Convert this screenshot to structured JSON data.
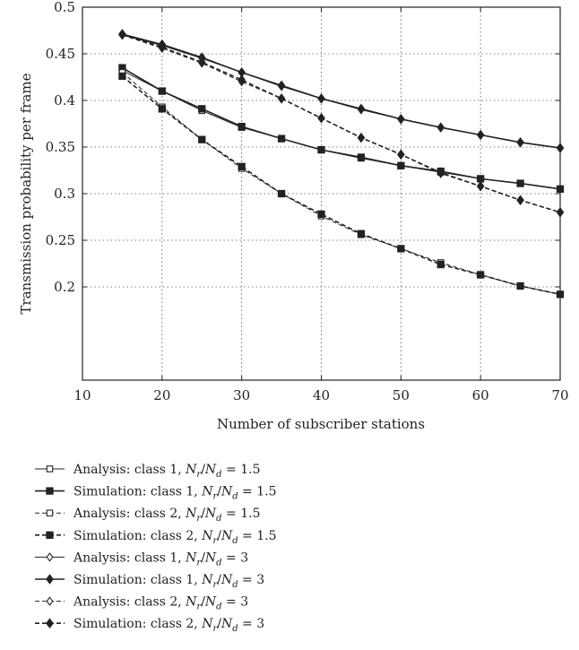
{
  "chart_data": {
    "type": "line",
    "title": "",
    "xlabel": "Number of subscriber stations",
    "ylabel": "Transmission probability per frame",
    "xlim": [
      10,
      70
    ],
    "ylim": [
      0.1,
      0.5
    ],
    "xticks": [
      10,
      20,
      30,
      40,
      50,
      60,
      70
    ],
    "yticks": [
      0.2,
      0.25,
      0.3,
      0.35,
      0.4,
      0.45,
      0.5
    ],
    "ytick_labels": [
      "0.2",
      "0.25",
      "0.3",
      "0.35",
      "0.4",
      "0.45",
      "0.5"
    ],
    "grid": true,
    "legend_position": "below",
    "series": [
      {
        "name": "Analysis: class 1, Nr/Nd = 1.5",
        "legend": {
          "prefix": "Analysis: class 1, ",
          "ratio": "1.5"
        },
        "line": "solid",
        "marker": "square",
        "filled": false,
        "thin": true,
        "x": [
          15,
          20,
          25,
          30,
          35,
          40,
          45,
          50,
          55,
          60,
          65,
          70
        ],
        "values": [
          0.432,
          0.41,
          0.389,
          0.371,
          0.359,
          0.347,
          0.338,
          0.33,
          0.323,
          0.316,
          0.311,
          0.305
        ]
      },
      {
        "name": "Simulation: class 1, Nr/Nd = 1.5",
        "legend": {
          "prefix": "Simulation: class 1, ",
          "ratio": "1.5"
        },
        "line": "solid",
        "marker": "square",
        "filled": true,
        "thin": false,
        "x": [
          15,
          20,
          25,
          30,
          35,
          40,
          45,
          50,
          55,
          60,
          65,
          70
        ],
        "values": [
          0.435,
          0.41,
          0.391,
          0.372,
          0.359,
          0.347,
          0.339,
          0.33,
          0.324,
          0.316,
          0.311,
          0.305
        ]
      },
      {
        "name": "Analysis: class 2, Nr/Nd = 1.5",
        "legend": {
          "prefix": "Analysis: class 2, ",
          "ratio": "1.5"
        },
        "line": "dashed",
        "marker": "square",
        "filled": false,
        "thin": true,
        "x": [
          15,
          20,
          25,
          30,
          35,
          40,
          45,
          50,
          55,
          60,
          65,
          70
        ],
        "values": [
          0.43,
          0.393,
          0.358,
          0.327,
          0.3,
          0.276,
          0.256,
          0.241,
          0.226,
          0.213,
          0.201,
          0.192
        ]
      },
      {
        "name": "Simulation: class 2, Nr/Nd = 1.5",
        "legend": {
          "prefix": "Simulation: class 2, ",
          "ratio": "1.5"
        },
        "line": "dashed",
        "marker": "square",
        "filled": true,
        "thin": false,
        "x": [
          15,
          20,
          25,
          30,
          35,
          40,
          45,
          50,
          55,
          60,
          65,
          70
        ],
        "values": [
          0.426,
          0.391,
          0.358,
          0.329,
          0.3,
          0.278,
          0.257,
          0.241,
          0.224,
          0.213,
          0.201,
          0.192
        ]
      },
      {
        "name": "Analysis: class 1, Nr/Nd = 3",
        "legend": {
          "prefix": "Analysis: class 1, ",
          "ratio": "3"
        },
        "line": "solid",
        "marker": "diamond",
        "filled": false,
        "thin": true,
        "x": [
          15,
          20,
          25,
          30,
          35,
          40,
          45,
          50,
          55,
          60,
          65,
          70
        ],
        "values": [
          0.47,
          0.459,
          0.445,
          0.43,
          0.415,
          0.402,
          0.39,
          0.38,
          0.371,
          0.363,
          0.355,
          0.349
        ]
      },
      {
        "name": "Simulation: class 1, Nr/Nd = 3",
        "legend": {
          "prefix": "Simulation: class 1, ",
          "ratio": "3"
        },
        "line": "solid",
        "marker": "diamond",
        "filled": true,
        "thin": false,
        "x": [
          15,
          20,
          25,
          30,
          35,
          40,
          45,
          50,
          55,
          60,
          65,
          70
        ],
        "values": [
          0.471,
          0.46,
          0.446,
          0.43,
          0.416,
          0.402,
          0.391,
          0.38,
          0.371,
          0.363,
          0.355,
          0.349
        ]
      },
      {
        "name": "Analysis: class 2, Nr/Nd = 3",
        "legend": {
          "prefix": "Analysis: class 2, ",
          "ratio": "3"
        },
        "line": "dashed",
        "marker": "diamond",
        "filled": false,
        "thin": true,
        "x": [
          15,
          20,
          25,
          30,
          35,
          40,
          45,
          50,
          55,
          60,
          65,
          70
        ],
        "values": [
          0.47,
          0.456,
          0.44,
          0.42,
          0.402,
          0.381,
          0.36,
          0.342,
          0.323,
          0.308,
          0.293,
          0.28
        ]
      },
      {
        "name": "Simulation: class 2, Nr/Nd = 3",
        "legend": {
          "prefix": "Simulation: class 2, ",
          "ratio": "3"
        },
        "line": "dashed",
        "marker": "diamond",
        "filled": true,
        "thin": false,
        "x": [
          15,
          20,
          25,
          30,
          35,
          40,
          45,
          50,
          55,
          60,
          65,
          70
        ],
        "values": [
          0.471,
          0.457,
          0.441,
          0.422,
          0.402,
          0.381,
          0.36,
          0.342,
          0.322,
          0.308,
          0.293,
          0.28
        ]
      }
    ]
  },
  "colors": {
    "ink": "#222222",
    "grid": "#555555",
    "background": "#ffffff"
  }
}
